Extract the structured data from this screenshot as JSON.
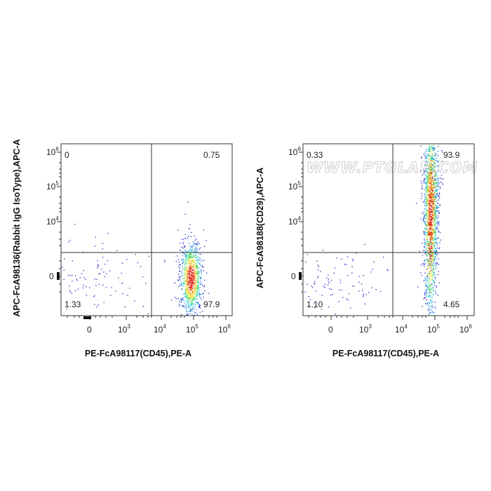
{
  "watermark": "WWW.PTGLAB.COM",
  "colormap": [
    "#1c23c4",
    "#1f7be0",
    "#18c6d8",
    "#3fd65a",
    "#e7e330",
    "#f39a1f",
    "#e02a16"
  ],
  "chart_data": [
    {
      "type": "scatter",
      "title": "",
      "xlabel": "PE-FcA98117(CD45),PE-A",
      "ylabel": "APC-FcA98136(Rabbit IgG IsoType),APC-A",
      "xscale": "biexponential",
      "yscale": "biexponential",
      "x_ticks": [
        "0",
        "10^3",
        "10^4",
        "10^5",
        "10^6"
      ],
      "y_ticks": [
        "0",
        "10^4",
        "10^5",
        "10^6"
      ],
      "quadrant_gate": {
        "x": 6000,
        "y": 3000
      },
      "quadrants": {
        "UL": "0",
        "UR": "0.75",
        "LL": "1.33",
        "LR": "97.9"
      },
      "populations": [
        {
          "name": "",
          "center": [
            90000,
            0
          ],
          "x_spread_decades": 0.17,
          "y_spread": 0.11,
          "density": "high"
        },
        {
          "name": "",
          "center": [
            0,
            0
          ],
          "x_spread_decades": 0.55,
          "y_spread": 0.1,
          "density": "low"
        }
      ]
    },
    {
      "type": "scatter",
      "title": "",
      "xlabel": "PE-FcA98117(CD45),PE-A",
      "ylabel": "APC-FcA98188(CD29),APC-A",
      "xscale": "biexponential",
      "yscale": "biexponential",
      "x_ticks": [
        "0",
        "10^3",
        "10^4",
        "10^5",
        "10^6"
      ],
      "y_ticks": [
        "0",
        "10^4",
        "10^5",
        "10^6"
      ],
      "quadrant_gate": {
        "x": 6000,
        "y": 3000
      },
      "quadrants": {
        "UL": "0.33",
        "UR": "93.9",
        "LL": "1.10",
        "LR": "4.65"
      },
      "populations": [
        {
          "name": "",
          "center": [
            80000,
            60000
          ],
          "x_spread_decades": 0.12,
          "y_spread": 0.25,
          "density": "high"
        },
        {
          "name": "",
          "center": [
            75000,
            8000
          ],
          "x_spread_decades": 0.1,
          "y_spread": 0.3,
          "density": "high"
        },
        {
          "name": "",
          "center": [
            0,
            0
          ],
          "x_spread_decades": 0.55,
          "y_spread": 0.1,
          "density": "low"
        }
      ]
    }
  ]
}
